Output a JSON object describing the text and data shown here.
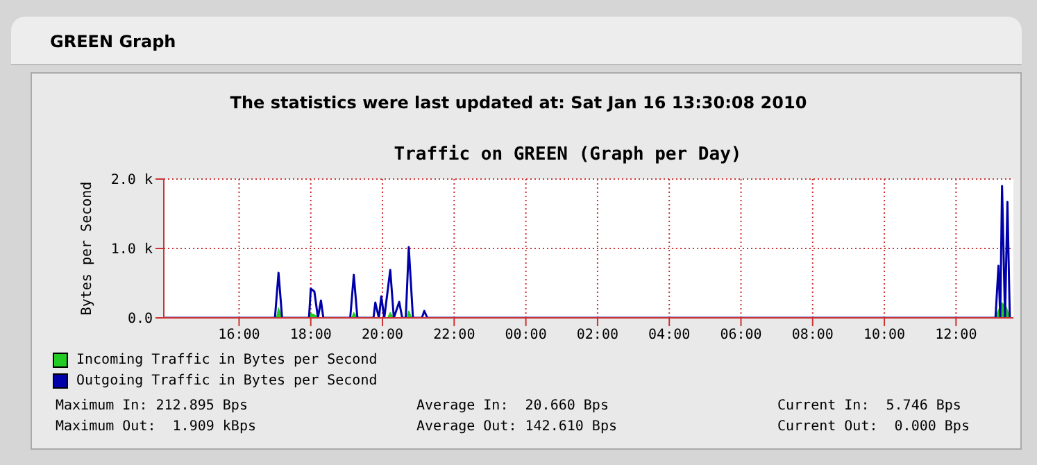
{
  "chart_data": {
    "type": "line",
    "title": "Traffic on GREEN (Graph per Day)",
    "subtitle": "The statistics were last updated at: Sat Jan 16 13:30:08 2010",
    "ylabel": "Bytes per Second",
    "annotations": [
      "GREEN Graph",
      "Maximum In: 212.895 Bps",
      "Average In:  20.660 Bps",
      "Current In:  5.746 Bps",
      "Maximum Out:  1.909 kBps",
      "Average Out: 142.610 Bps",
      "Current Out:  0.000 Bps"
    ],
    "xlim": [
      "2010-01-15T13:54",
      "2010-01-16T13:36"
    ],
    "xticks": [
      {
        "value": "2010-01-15T16:00",
        "label": "16:00"
      },
      {
        "value": "2010-01-15T18:00",
        "label": "18:00"
      },
      {
        "value": "2010-01-15T20:00",
        "label": "20:00"
      },
      {
        "value": "2010-01-15T22:00",
        "label": "22:00"
      },
      {
        "value": "2010-01-16T00:00",
        "label": "00:00"
      },
      {
        "value": "2010-01-16T02:00",
        "label": "02:00"
      },
      {
        "value": "2010-01-16T04:00",
        "label": "04:00"
      },
      {
        "value": "2010-01-16T06:00",
        "label": "06:00"
      },
      {
        "value": "2010-01-16T08:00",
        "label": "08:00"
      },
      {
        "value": "2010-01-16T10:00",
        "label": "10:00"
      },
      {
        "value": "2010-01-16T12:00",
        "label": "12:00"
      }
    ],
    "ylim": [
      0,
      2000
    ],
    "yticks": [
      {
        "value": 0,
        "label": "0.0"
      },
      {
        "value": 1000,
        "label": "1.0 k"
      },
      {
        "value": 2000,
        "label": "2.0 k"
      }
    ],
    "grid": true,
    "legend": "bottom",
    "marker": "none",
    "series": [
      {
        "name": "Incoming Traffic in Bytes per Second",
        "type": "area",
        "color": "#22cc22",
        "x": [
          "2010-01-15T13:54",
          "2010-01-15T17:03",
          "2010-01-15T17:06",
          "2010-01-15T17:12",
          "2010-01-15T17:57",
          "2010-01-15T18:00",
          "2010-01-15T18:06",
          "2010-01-15T18:12",
          "2010-01-15T19:09",
          "2010-01-15T19:12",
          "2010-01-15T19:18",
          "2010-01-15T20:09",
          "2010-01-15T20:13",
          "2010-01-15T20:18",
          "2010-01-15T20:42",
          "2010-01-15T20:44",
          "2010-01-15T20:48",
          "2010-01-16T13:06",
          "2010-01-16T13:12",
          "2010-01-16T13:17",
          "2010-01-16T13:24",
          "2010-01-16T13:30"
        ],
        "values": [
          0,
          0,
          130,
          0,
          0,
          60,
          40,
          0,
          0,
          70,
          0,
          0,
          70,
          0,
          0,
          100,
          0,
          0,
          120,
          210,
          150,
          0
        ]
      },
      {
        "name": "Outgoing Traffic in Bytes per Second",
        "type": "line",
        "color": "#0000aa",
        "x": [
          "2010-01-15T13:54",
          "2010-01-15T17:00",
          "2010-01-15T17:06",
          "2010-01-15T17:12",
          "2010-01-15T17:57",
          "2010-01-15T18:00",
          "2010-01-15T18:06",
          "2010-01-15T18:12",
          "2010-01-15T18:17",
          "2010-01-15T18:21",
          "2010-01-15T19:06",
          "2010-01-15T19:12",
          "2010-01-15T19:18",
          "2010-01-15T19:45",
          "2010-01-15T19:48",
          "2010-01-15T19:54",
          "2010-01-15T19:58",
          "2010-01-15T20:03",
          "2010-01-15T20:13",
          "2010-01-15T20:19",
          "2010-01-15T20:28",
          "2010-01-15T20:33",
          "2010-01-15T20:39",
          "2010-01-15T20:44",
          "2010-01-15T20:51",
          "2010-01-15T21:06",
          "2010-01-15T21:10",
          "2010-01-15T21:15",
          "2010-01-16T13:06",
          "2010-01-16T13:11",
          "2010-01-16T13:14",
          "2010-01-16T13:17",
          "2010-01-16T13:22",
          "2010-01-16T13:26",
          "2010-01-16T13:30"
        ],
        "values": [
          0,
          0,
          650,
          0,
          0,
          420,
          380,
          0,
          250,
          0,
          0,
          620,
          0,
          0,
          220,
          0,
          310,
          0,
          690,
          0,
          230,
          0,
          0,
          1020,
          0,
          0,
          100,
          0,
          0,
          750,
          0,
          1900,
          0,
          1670,
          0
        ]
      }
    ]
  }
}
